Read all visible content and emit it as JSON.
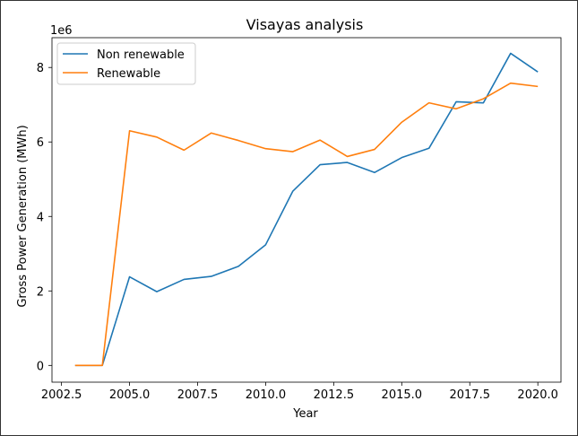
{
  "chart_data": {
    "type": "line",
    "title": "Visayas analysis",
    "xlabel": "Year",
    "ylabel": "Gross Power Generation (MWh)",
    "y_multiplier_label": "1e6",
    "xlim": [
      2002.15,
      2020.85
    ],
    "ylim": [
      -0.45,
      8.8
    ],
    "y_unit_scale": 1000000,
    "x_ticks": [
      2002.5,
      2005.0,
      2007.5,
      2010.0,
      2012.5,
      2015.0,
      2017.5,
      2020.0
    ],
    "x_tick_labels": [
      "2002.5",
      "2005.0",
      "2007.5",
      "2010.0",
      "2012.5",
      "2015.0",
      "2017.5",
      "2020.0"
    ],
    "y_ticks": [
      0,
      2,
      4,
      6,
      8
    ],
    "y_tick_labels": [
      "0",
      "2",
      "4",
      "6",
      "8"
    ],
    "x": [
      2003,
      2004,
      2005,
      2006,
      2007,
      2008,
      2009,
      2010,
      2011,
      2012,
      2013,
      2014,
      2015,
      2016,
      2017,
      2018,
      2019,
      2020
    ],
    "series": [
      {
        "name": "Non renewable",
        "color": "#1f77b4",
        "values": [
          0,
          0,
          2.38,
          1.98,
          2.31,
          2.39,
          2.66,
          3.24,
          4.68,
          5.39,
          5.45,
          5.18,
          5.58,
          5.83,
          7.08,
          7.05,
          8.38,
          7.88
        ]
      },
      {
        "name": "Renewable",
        "color": "#ff7f0e",
        "values": [
          0,
          0,
          6.3,
          6.13,
          5.78,
          6.24,
          6.04,
          5.82,
          5.74,
          6.05,
          5.61,
          5.8,
          6.53,
          7.05,
          6.89,
          7.16,
          7.58,
          7.49
        ]
      }
    ],
    "grid": false,
    "legend_position": "upper-left"
  }
}
